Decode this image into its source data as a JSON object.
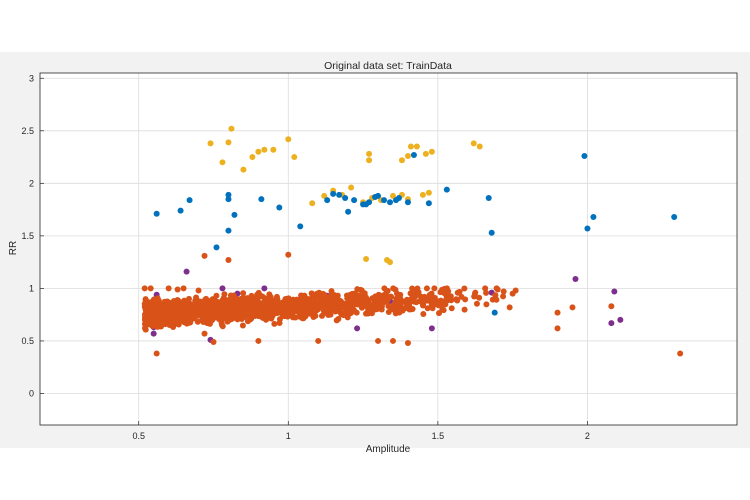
{
  "chart_data": {
    "type": "scatter",
    "title": "Original data set: TrainData",
    "xlabel": "Amplitude",
    "ylabel": "RR",
    "xlim": [
      0.17,
      2.5
    ],
    "ylim": [
      -0.3,
      3.05
    ],
    "xticks": [
      0.5,
      1,
      1.5,
      2
    ],
    "xtick_labels": [
      "0.5",
      "1",
      "1.5",
      "2"
    ],
    "yticks": [
      0,
      0.5,
      1,
      1.5,
      2,
      2.5,
      3
    ],
    "ytick_labels": [
      "0",
      "0.5",
      "1",
      "1.5",
      "2",
      "2.5",
      "3"
    ],
    "grid": true,
    "legend": "none",
    "series": [
      {
        "color": "#edb120",
        "points": [
          [
            0.74,
            2.38
          ],
          [
            0.8,
            2.39
          ],
          [
            0.81,
            2.52
          ],
          [
            0.78,
            2.2
          ],
          [
            0.88,
            2.25
          ],
          [
            0.9,
            2.3
          ],
          [
            0.92,
            2.32
          ],
          [
            0.95,
            2.32
          ],
          [
            1.0,
            2.42
          ],
          [
            1.02,
            2.25
          ],
          [
            0.85,
            2.13
          ],
          [
            1.27,
            2.28
          ],
          [
            1.27,
            2.22
          ],
          [
            1.38,
            2.22
          ],
          [
            1.4,
            2.26
          ],
          [
            1.41,
            2.35
          ],
          [
            1.43,
            2.35
          ],
          [
            1.46,
            2.28
          ],
          [
            1.48,
            2.3
          ],
          [
            1.62,
            2.38
          ],
          [
            1.64,
            2.35
          ],
          [
            1.12,
            1.88
          ],
          [
            1.15,
            1.93
          ],
          [
            1.18,
            1.89
          ],
          [
            1.21,
            1.96
          ],
          [
            1.25,
            1.82
          ],
          [
            1.28,
            1.86
          ],
          [
            1.35,
            1.88
          ],
          [
            1.4,
            1.85
          ],
          [
            1.45,
            1.89
          ],
          [
            1.47,
            1.91
          ],
          [
            1.08,
            1.81
          ],
          [
            1.26,
            1.28
          ],
          [
            1.33,
            1.27
          ],
          [
            1.34,
            1.25
          ],
          [
            1.38,
            1.89
          ],
          [
            1.31,
            1.84
          ]
        ]
      },
      {
        "color": "#0072bd",
        "points": [
          [
            0.56,
            1.71
          ],
          [
            0.64,
            1.74
          ],
          [
            0.67,
            1.84
          ],
          [
            0.8,
            1.85
          ],
          [
            0.8,
            1.89
          ],
          [
            0.82,
            1.7
          ],
          [
            0.8,
            1.55
          ],
          [
            0.76,
            1.39
          ],
          [
            0.91,
            1.85
          ],
          [
            0.97,
            1.77
          ],
          [
            1.04,
            1.59
          ],
          [
            1.13,
            1.84
          ],
          [
            1.15,
            1.9
          ],
          [
            1.17,
            1.89
          ],
          [
            1.19,
            1.86
          ],
          [
            1.2,
            1.73
          ],
          [
            1.22,
            1.84
          ],
          [
            1.25,
            1.8
          ],
          [
            1.27,
            1.82
          ],
          [
            1.29,
            1.87
          ],
          [
            1.3,
            1.88
          ],
          [
            1.32,
            1.84
          ],
          [
            1.34,
            1.82
          ],
          [
            1.36,
            1.84
          ],
          [
            1.4,
            1.82
          ],
          [
            1.42,
            2.27
          ],
          [
            1.47,
            1.81
          ],
          [
            1.53,
            1.94
          ],
          [
            1.67,
            1.86
          ],
          [
            1.68,
            1.53
          ],
          [
            1.99,
            2.26
          ],
          [
            2.0,
            1.57
          ],
          [
            2.02,
            1.68
          ],
          [
            2.29,
            1.68
          ],
          [
            1.26,
            1.8
          ],
          [
            1.37,
            1.86
          ],
          [
            1.69,
            0.77
          ]
        ]
      },
      {
        "color": "#7e2f8e",
        "points": [
          [
            0.56,
            0.94
          ],
          [
            0.55,
            0.63
          ],
          [
            0.55,
            0.57
          ],
          [
            0.66,
            1.16
          ],
          [
            0.78,
            1.0
          ],
          [
            0.83,
            0.95
          ],
          [
            0.92,
            1.0
          ],
          [
            0.74,
            0.51
          ],
          [
            1.23,
            0.62
          ],
          [
            1.48,
            0.62
          ],
          [
            1.68,
            0.96
          ],
          [
            1.96,
            1.09
          ],
          [
            2.09,
            0.97
          ],
          [
            2.11,
            0.7
          ],
          [
            2.08,
            0.67
          ],
          [
            1.13,
            0.93
          ],
          [
            1.34,
            0.88
          ]
        ]
      },
      {
        "color": "#d95319",
        "cluster": {
          "x_range": [
            0.52,
            1.77
          ],
          "y_center_at_x_start": 0.76,
          "y_center_at_x_end": 0.93,
          "y_spread": 0.1,
          "count": 1300
        },
        "points": [
          [
            0.52,
            1.0
          ],
          [
            0.54,
            1.0
          ],
          [
            0.56,
            0.38
          ],
          [
            0.6,
            1.0
          ],
          [
            0.63,
            0.99
          ],
          [
            0.65,
            1.0
          ],
          [
            0.7,
            0.98
          ],
          [
            0.72,
            1.31
          ],
          [
            0.8,
            1.27
          ],
          [
            1.0,
            1.32
          ],
          [
            0.72,
            0.57
          ],
          [
            0.75,
            0.49
          ],
          [
            0.9,
            0.5
          ],
          [
            1.1,
            0.5
          ],
          [
            1.3,
            0.5
          ],
          [
            1.35,
            0.5
          ],
          [
            1.4,
            0.48
          ],
          [
            1.7,
            0.99
          ],
          [
            1.72,
            0.97
          ],
          [
            1.75,
            0.95
          ],
          [
            1.76,
            0.98
          ],
          [
            1.74,
            0.82
          ],
          [
            1.9,
            0.77
          ],
          [
            1.9,
            0.62
          ],
          [
            1.95,
            0.82
          ],
          [
            2.08,
            0.83
          ],
          [
            2.31,
            0.38
          ]
        ]
      }
    ]
  }
}
